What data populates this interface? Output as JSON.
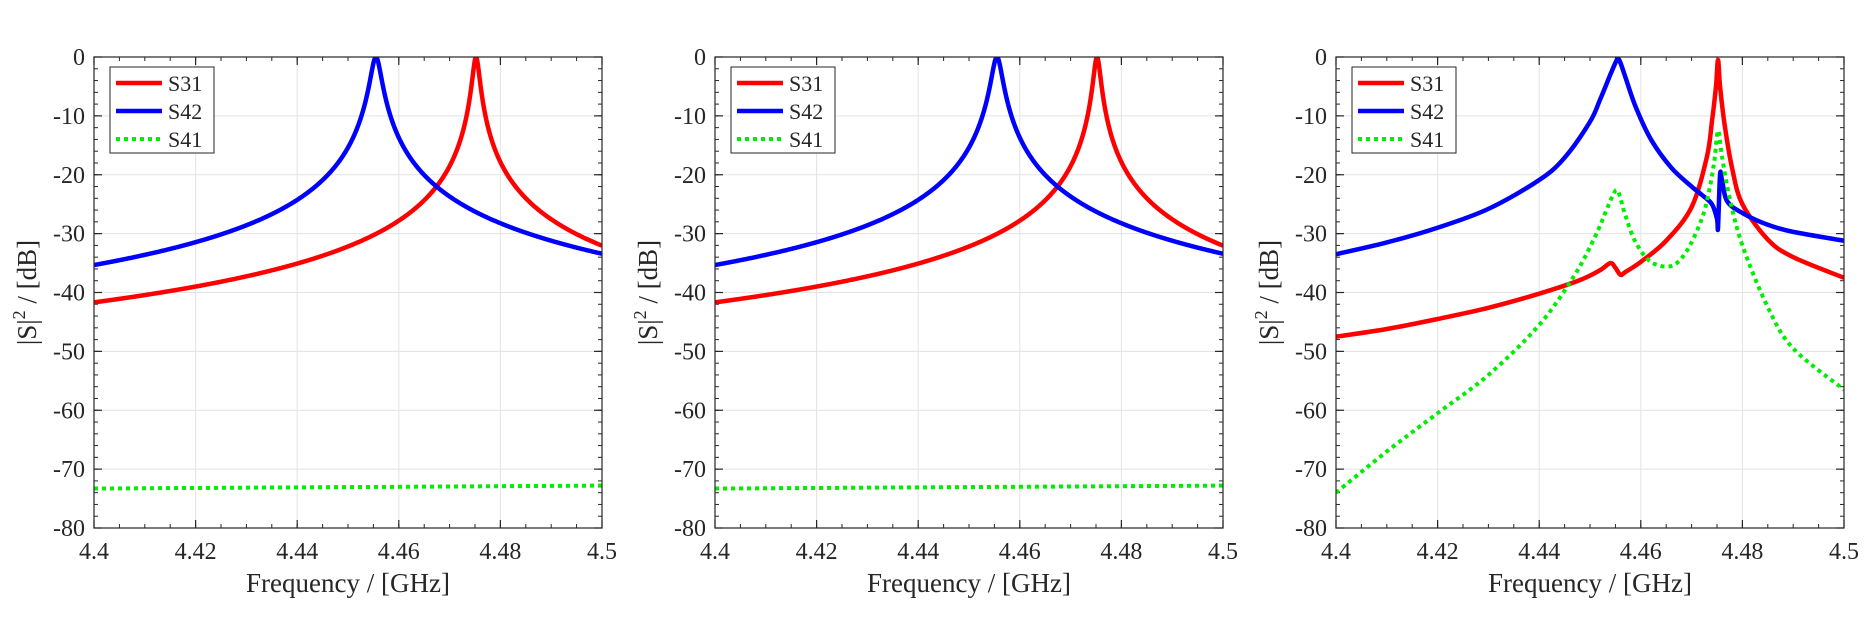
{
  "figure": {
    "description_panels": 3
  },
  "chart_data": [
    {
      "type": "line",
      "panel": 1,
      "xlabel": "Frequency / [GHz]",
      "ylabel_base": "|S|",
      "ylabel_sup": "2",
      "ylabel_unit": " / [dB]",
      "xlim": [
        4.4,
        4.5
      ],
      "ylim": [
        -80,
        0
      ],
      "xticks": [
        4.4,
        4.42,
        4.44,
        4.46,
        4.48,
        4.5
      ],
      "xtick_labels": [
        "4.4",
        "4.42",
        "4.44",
        "4.46",
        "4.48",
        "4.5"
      ],
      "yticks": [
        0,
        -10,
        -20,
        -30,
        -40,
        -50,
        -60,
        -70,
        -80
      ],
      "ytick_labels": [
        "0",
        "-10",
        "-20",
        "-30",
        "-40",
        "-50",
        "-60",
        "-70",
        "-80"
      ],
      "grid": true,
      "legend": "top-left",
      "series": [
        {
          "name": "S31",
          "color": "#ff0000",
          "style": "solid",
          "kind": "lorentz",
          "f0": 4.4752,
          "gamma": 0.00062,
          "floor": -90
        },
        {
          "name": "S42",
          "color": "#0000ff",
          "style": "solid",
          "kind": "lorentz",
          "f0": 4.4555,
          "gamma": 0.00095,
          "floor": -90
        },
        {
          "name": "S41",
          "color": "#00ee00",
          "style": "dotted",
          "kind": "linear",
          "start": -73.3,
          "end": -72.8
        }
      ]
    },
    {
      "type": "line",
      "panel": 2,
      "xlabel": "Frequency / [GHz]",
      "ylabel_base": "|S|",
      "ylabel_sup": "2",
      "ylabel_unit": " / [dB]",
      "xlim": [
        4.4,
        4.5
      ],
      "ylim": [
        -80,
        0
      ],
      "xticks": [
        4.4,
        4.42,
        4.44,
        4.46,
        4.48,
        4.5
      ],
      "xtick_labels": [
        "4.4",
        "4.42",
        "4.44",
        "4.46",
        "4.48",
        "4.5"
      ],
      "yticks": [
        0,
        -10,
        -20,
        -30,
        -40,
        -50,
        -60,
        -70,
        -80
      ],
      "ytick_labels": [
        "0",
        "-10",
        "-20",
        "-30",
        "-40",
        "-50",
        "-60",
        "-70",
        "-80"
      ],
      "grid": true,
      "legend": "top-left",
      "series": [
        {
          "name": "S31",
          "color": "#ff0000",
          "style": "solid",
          "kind": "lorentz",
          "f0": 4.4752,
          "gamma": 0.00062,
          "floor": -90
        },
        {
          "name": "S42",
          "color": "#0000ff",
          "style": "solid",
          "kind": "lorentz",
          "f0": 4.4555,
          "gamma": 0.00095,
          "floor": -90
        },
        {
          "name": "S41",
          "color": "#00ee00",
          "style": "dotted",
          "kind": "linear",
          "start": -73.3,
          "end": -72.8
        }
      ]
    },
    {
      "type": "line",
      "panel": 3,
      "xlabel": "Frequency / [GHz]",
      "ylabel_base": "|S|",
      "ylabel_sup": "2",
      "ylabel_unit": " / [dB]",
      "xlim": [
        4.4,
        4.5
      ],
      "ylim": [
        -80,
        0
      ],
      "xticks": [
        4.4,
        4.42,
        4.44,
        4.46,
        4.48,
        4.5
      ],
      "xtick_labels": [
        "4.4",
        "4.42",
        "4.44",
        "4.46",
        "4.48",
        "4.5"
      ],
      "yticks": [
        0,
        -10,
        -20,
        -30,
        -40,
        -50,
        -60,
        -70,
        -80
      ],
      "ytick_labels": [
        "0",
        "-10",
        "-20",
        "-30",
        "-40",
        "-50",
        "-60",
        "-70",
        "-80"
      ],
      "grid": true,
      "legend": "top-left",
      "series": [
        {
          "name": "S31",
          "color": "#ff0000",
          "style": "solid",
          "kind": "points",
          "x": [
            4.4,
            4.41,
            4.42,
            4.43,
            4.44,
            4.448,
            4.452,
            4.454,
            4.455,
            4.456,
            4.457,
            4.46,
            4.465,
            4.47,
            4.473,
            4.474,
            4.4748,
            4.4752,
            4.4756,
            4.4765,
            4.478,
            4.48,
            4.485,
            4.49,
            4.5
          ],
          "y": [
            -47.5,
            -46.2,
            -44.5,
            -42.6,
            -40.2,
            -37.9,
            -36.2,
            -35.0,
            -35.8,
            -37.0,
            -36.5,
            -34.8,
            -31.2,
            -25.5,
            -17.0,
            -11.0,
            -5.0,
            -0.5,
            -5.0,
            -11.5,
            -19.0,
            -25.0,
            -31.0,
            -34.0,
            -37.5
          ]
        },
        {
          "name": "S42",
          "color": "#0000ff",
          "style": "solid",
          "kind": "points",
          "x": [
            4.4,
            4.41,
            4.42,
            4.43,
            4.44,
            4.445,
            4.45,
            4.452,
            4.454,
            4.455,
            4.4555,
            4.456,
            4.457,
            4.459,
            4.462,
            4.466,
            4.47,
            4.472,
            4.474,
            4.475,
            4.4752,
            4.4756,
            4.476,
            4.477,
            4.48,
            4.485,
            4.49,
            4.5
          ],
          "y": [
            -33.5,
            -31.5,
            -29.0,
            -25.8,
            -20.9,
            -17.1,
            -11.0,
            -7.2,
            -3.0,
            -1.0,
            -0.3,
            -1.0,
            -3.5,
            -8.5,
            -14.0,
            -18.8,
            -22.0,
            -23.4,
            -25.0,
            -27.5,
            -29.0,
            -20.0,
            -21.0,
            -24.5,
            -26.5,
            -28.5,
            -29.7,
            -31.2
          ]
        },
        {
          "name": "S41",
          "color": "#00ee00",
          "style": "dotted",
          "kind": "points",
          "x": [
            4.4,
            4.41,
            4.42,
            4.43,
            4.44,
            4.447,
            4.451,
            4.453,
            4.4545,
            4.4555,
            4.457,
            4.459,
            4.462,
            4.466,
            4.469,
            4.472,
            4.4735,
            4.4745,
            4.4752,
            4.476,
            4.4775,
            4.48,
            4.485,
            4.49,
            4.5
          ],
          "y": [
            -74.0,
            -67.0,
            -60.5,
            -54.0,
            -45.5,
            -37.0,
            -30.5,
            -26.5,
            -23.5,
            -22.8,
            -27.0,
            -31.5,
            -34.8,
            -35.5,
            -33.0,
            -27.5,
            -22.5,
            -17.5,
            -12.5,
            -17.0,
            -24.0,
            -32.0,
            -42.5,
            -49.5,
            -56.5
          ]
        }
      ]
    }
  ]
}
